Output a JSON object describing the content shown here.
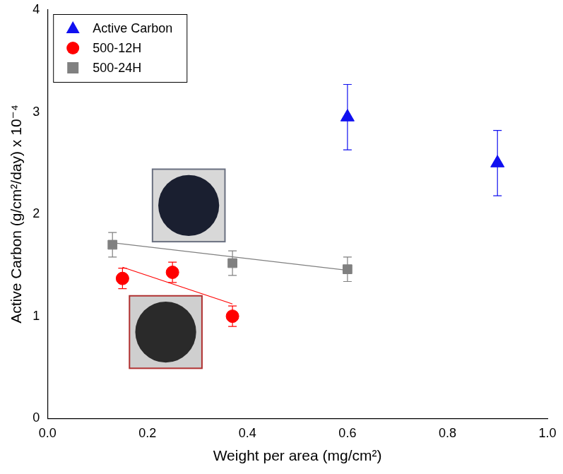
{
  "chart_data": {
    "type": "scatter",
    "x_label": "Weight per area (mg/cm²)",
    "y_label": "Active Carbon (g/cm²/day) x 10⁻⁴",
    "xlim": [
      0,
      1
    ],
    "xticks": [
      {
        "value": 0,
        "label": "0.0"
      },
      0.2,
      0.4,
      0.6,
      0.8,
      {
        "value": 1,
        "label": "1.0"
      }
    ],
    "ylim": [
      0,
      4
    ],
    "yticks": [
      0,
      1,
      2,
      3,
      4
    ],
    "grid": false,
    "legend": "upper left",
    "series": [
      {
        "name": "Active Carbon",
        "color": "#1010f0",
        "marker": "triangle",
        "x": [
          0.6,
          0.9
        ],
        "values": [
          2.95,
          2.5
        ],
        "errors": [
          0.32,
          0.32
        ]
      },
      {
        "name": "500-12H",
        "color": "#ff0000",
        "marker": "circle",
        "x": [
          0.15,
          0.25,
          0.37
        ],
        "values": [
          1.37,
          1.43,
          1.0
        ],
        "errors": [
          0.1,
          0.1,
          0.1
        ],
        "fit": {
          "x": [
            0.15,
            0.37
          ],
          "values": [
            1.48,
            1.12
          ]
        }
      },
      {
        "name": "500-24H",
        "color": "#808080",
        "marker": "square",
        "x": [
          0.13,
          0.37,
          0.6
        ],
        "values": [
          1.7,
          1.52,
          1.46
        ],
        "errors": [
          0.12,
          0.12,
          0.12
        ],
        "fit": {
          "x": [
            0.13,
            0.6
          ],
          "values": [
            1.72,
            1.45
          ]
        }
      }
    ]
  }
}
